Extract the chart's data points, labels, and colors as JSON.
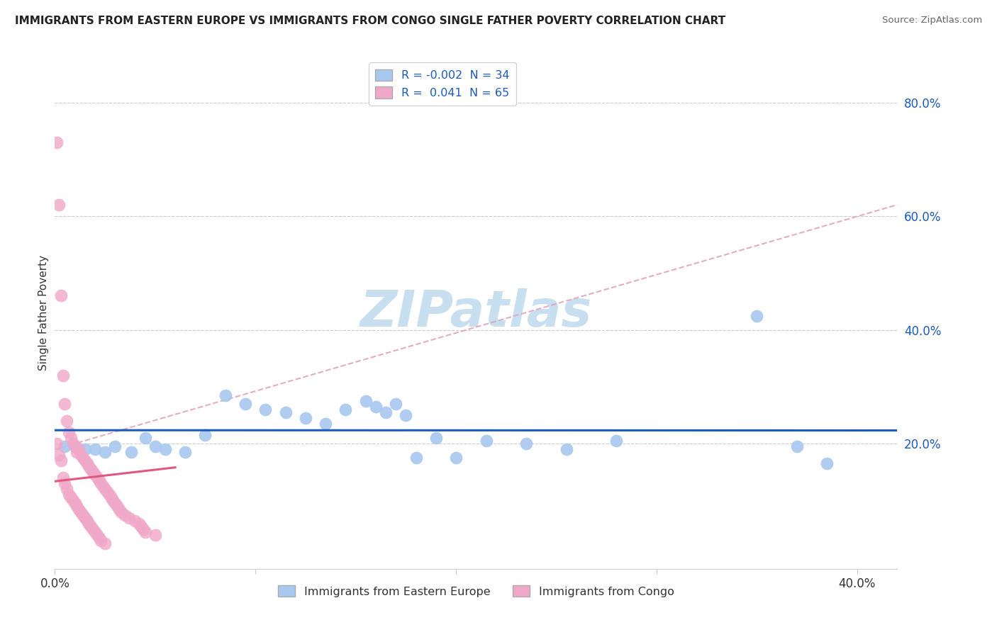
{
  "title": "IMMIGRANTS FROM EASTERN EUROPE VS IMMIGRANTS FROM CONGO SINGLE FATHER POVERTY CORRELATION CHART",
  "source": "Source: ZipAtlas.com",
  "ylabel": "Single Father Poverty",
  "legend_blue_label": "Immigrants from Eastern Europe",
  "legend_pink_label": "Immigrants from Congo",
  "legend_blue_R": "-0.002",
  "legend_blue_N": "34",
  "legend_pink_R": "0.041",
  "legend_pink_N": "65",
  "blue_dot_color": "#a8c8f0",
  "pink_dot_color": "#f0a8c8",
  "blue_line_color": "#1a5bbf",
  "pink_line_color": "#e05880",
  "dash_line_color": "#e0a0b8",
  "watermark_color": "#c8dff0",
  "xlim": [
    0.0,
    0.42
  ],
  "ylim": [
    -0.02,
    0.88
  ],
  "xticks": [
    0.0,
    0.1,
    0.2,
    0.3,
    0.4
  ],
  "xtick_labels": [
    "0.0%",
    "",
    "",
    "",
    "40.0%"
  ],
  "yticks": [
    0.2,
    0.4,
    0.6,
    0.8
  ],
  "ytick_labels": [
    "20.0%",
    "40.0%",
    "60.0%",
    "80.0%"
  ],
  "blue_x": [
    0.005,
    0.01,
    0.015,
    0.02,
    0.025,
    0.03,
    0.038,
    0.045,
    0.05,
    0.055,
    0.065,
    0.075,
    0.085,
    0.095,
    0.105,
    0.115,
    0.125,
    0.135,
    0.145,
    0.155,
    0.16,
    0.165,
    0.17,
    0.175,
    0.18,
    0.19,
    0.2,
    0.215,
    0.235,
    0.255,
    0.28,
    0.35,
    0.37,
    0.385
  ],
  "blue_y": [
    0.195,
    0.195,
    0.19,
    0.19,
    0.185,
    0.195,
    0.185,
    0.21,
    0.195,
    0.19,
    0.185,
    0.215,
    0.285,
    0.27,
    0.26,
    0.255,
    0.245,
    0.235,
    0.26,
    0.275,
    0.265,
    0.255,
    0.27,
    0.25,
    0.175,
    0.21,
    0.175,
    0.205,
    0.2,
    0.19,
    0.205,
    0.425,
    0.195,
    0.165
  ],
  "pink_x": [
    0.001,
    0.001,
    0.002,
    0.002,
    0.003,
    0.003,
    0.004,
    0.004,
    0.005,
    0.005,
    0.006,
    0.006,
    0.007,
    0.007,
    0.008,
    0.008,
    0.009,
    0.009,
    0.01,
    0.01,
    0.011,
    0.011,
    0.012,
    0.012,
    0.013,
    0.013,
    0.014,
    0.014,
    0.015,
    0.015,
    0.016,
    0.016,
    0.017,
    0.017,
    0.018,
    0.018,
    0.019,
    0.019,
    0.02,
    0.02,
    0.021,
    0.021,
    0.022,
    0.022,
    0.023,
    0.023,
    0.024,
    0.025,
    0.025,
    0.026,
    0.027,
    0.028,
    0.029,
    0.03,
    0.031,
    0.032,
    0.033,
    0.035,
    0.037,
    0.04,
    0.042,
    0.043,
    0.044,
    0.045,
    0.05
  ],
  "pink_y": [
    0.73,
    0.2,
    0.62,
    0.18,
    0.46,
    0.17,
    0.32,
    0.14,
    0.27,
    0.13,
    0.24,
    0.12,
    0.22,
    0.11,
    0.21,
    0.105,
    0.2,
    0.1,
    0.195,
    0.095,
    0.185,
    0.09,
    0.19,
    0.085,
    0.18,
    0.08,
    0.175,
    0.075,
    0.17,
    0.07,
    0.165,
    0.065,
    0.16,
    0.06,
    0.155,
    0.055,
    0.15,
    0.05,
    0.145,
    0.045,
    0.14,
    0.04,
    0.135,
    0.035,
    0.13,
    0.03,
    0.125,
    0.12,
    0.025,
    0.115,
    0.11,
    0.105,
    0.1,
    0.095,
    0.09,
    0.085,
    0.08,
    0.075,
    0.07,
    0.065,
    0.06,
    0.055,
    0.05,
    0.045,
    0.04
  ]
}
